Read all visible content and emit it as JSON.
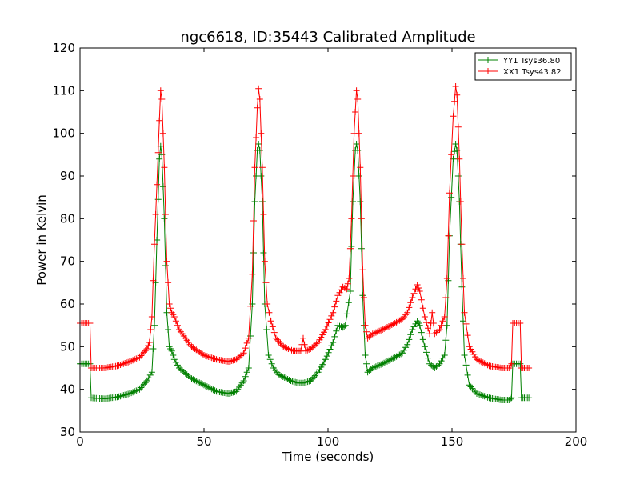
{
  "chart_data": {
    "type": "line",
    "title": "ngc6618, ID:35443 Calibrated Amplitude",
    "xlabel": "Time (seconds)",
    "ylabel": "Power in Kelvin",
    "xlim": [
      0,
      200
    ],
    "ylim": [
      30,
      120
    ],
    "xticks": [
      0,
      50,
      100,
      150,
      200
    ],
    "yticks": [
      30,
      40,
      50,
      60,
      70,
      80,
      90,
      100,
      110,
      120
    ],
    "grid": false,
    "legend_position": "top-right",
    "marker": "+",
    "series": [
      {
        "name": "YY1 Tsys36.80",
        "color": "#008000",
        "points": [
          [
            0,
            46
          ],
          [
            4,
            46
          ],
          [
            4.5,
            38
          ],
          [
            10,
            37.8
          ],
          [
            15,
            38.2
          ],
          [
            20,
            39
          ],
          [
            24,
            40
          ],
          [
            27,
            42
          ],
          [
            29,
            44
          ],
          [
            30,
            55
          ],
          [
            31,
            75
          ],
          [
            32,
            94
          ],
          [
            32.5,
            97
          ],
          [
            33,
            95
          ],
          [
            34,
            80
          ],
          [
            35,
            58
          ],
          [
            36,
            50
          ],
          [
            37,
            49
          ],
          [
            38,
            47
          ],
          [
            40,
            45
          ],
          [
            45,
            42.5
          ],
          [
            50,
            41
          ],
          [
            55,
            39.5
          ],
          [
            60,
            39
          ],
          [
            63,
            39.5
          ],
          [
            66,
            42
          ],
          [
            68,
            45
          ],
          [
            69.5,
            60
          ],
          [
            70.5,
            84
          ],
          [
            71.5,
            96
          ],
          [
            72,
            97.5
          ],
          [
            72.5,
            96
          ],
          [
            73.5,
            84
          ],
          [
            74.5,
            60
          ],
          [
            76,
            48
          ],
          [
            78,
            45
          ],
          [
            80,
            43.5
          ],
          [
            85,
            42
          ],
          [
            88,
            41.5
          ],
          [
            90,
            41.5
          ],
          [
            93,
            42
          ],
          [
            96,
            44
          ],
          [
            99,
            47
          ],
          [
            102,
            51
          ],
          [
            104,
            55
          ],
          [
            106,
            54.5
          ],
          [
            107,
            55
          ],
          [
            109,
            63
          ],
          [
            110,
            84
          ],
          [
            111,
            96
          ],
          [
            111.5,
            97.5
          ],
          [
            112,
            96
          ],
          [
            113,
            84
          ],
          [
            114,
            62
          ],
          [
            115,
            48
          ],
          [
            116,
            44
          ],
          [
            118,
            45
          ],
          [
            122,
            46
          ],
          [
            127,
            47.5
          ],
          [
            130,
            48.5
          ],
          [
            132,
            50.5
          ],
          [
            134,
            54
          ],
          [
            136,
            56
          ],
          [
            137,
            55
          ],
          [
            139,
            50
          ],
          [
            141,
            46
          ],
          [
            143,
            45
          ],
          [
            145,
            46
          ],
          [
            147,
            48
          ],
          [
            148,
            55
          ],
          [
            149,
            76
          ],
          [
            150.5,
            94
          ],
          [
            151.5,
            97.5
          ],
          [
            152,
            96
          ],
          [
            153,
            84
          ],
          [
            154,
            64
          ],
          [
            155,
            48
          ],
          [
            157,
            41
          ],
          [
            160,
            39
          ],
          [
            165,
            38
          ],
          [
            170,
            37.5
          ],
          [
            173,
            37.5
          ],
          [
            174,
            38
          ],
          [
            174.5,
            46
          ],
          [
            176,
            46
          ],
          [
            177.5,
            46
          ],
          [
            178,
            38
          ],
          [
            181,
            38
          ]
        ]
      },
      {
        "name": "XX1 Tsys43.82",
        "color": "#ff0000",
        "points": [
          [
            0,
            55.5
          ],
          [
            4,
            55.5
          ],
          [
            4.5,
            45
          ],
          [
            10,
            45
          ],
          [
            15,
            45.5
          ],
          [
            20,
            46.5
          ],
          [
            24,
            47.5
          ],
          [
            27,
            49.5
          ],
          [
            28,
            51
          ],
          [
            29,
            57
          ],
          [
            30,
            74
          ],
          [
            31,
            88
          ],
          [
            32,
            103
          ],
          [
            32.5,
            110
          ],
          [
            33,
            108
          ],
          [
            34,
            92
          ],
          [
            35,
            70
          ],
          [
            36,
            60
          ],
          [
            37,
            58
          ],
          [
            38,
            57
          ],
          [
            40,
            54
          ],
          [
            45,
            50
          ],
          [
            50,
            48
          ],
          [
            55,
            47
          ],
          [
            60,
            46.5
          ],
          [
            63,
            47
          ],
          [
            66,
            48.5
          ],
          [
            68,
            52
          ],
          [
            69.5,
            67
          ],
          [
            70.5,
            92
          ],
          [
            71.5,
            106
          ],
          [
            72,
            110.5
          ],
          [
            72.5,
            108
          ],
          [
            73.5,
            92
          ],
          [
            74.5,
            70
          ],
          [
            75.5,
            60
          ],
          [
            77,
            56
          ],
          [
            79,
            52
          ],
          [
            82,
            50
          ],
          [
            86,
            49
          ],
          [
            89,
            49
          ],
          [
            90,
            52
          ],
          [
            91,
            49
          ],
          [
            93,
            49.5
          ],
          [
            96,
            51
          ],
          [
            99,
            54
          ],
          [
            102,
            58
          ],
          [
            104,
            62
          ],
          [
            106,
            64
          ],
          [
            107.5,
            63.5
          ],
          [
            108.5,
            66
          ],
          [
            109.5,
            80
          ],
          [
            110.5,
            100
          ],
          [
            111.5,
            110
          ],
          [
            112,
            108
          ],
          [
            113,
            92
          ],
          [
            114,
            68
          ],
          [
            115,
            55
          ],
          [
            116,
            52
          ],
          [
            118,
            53
          ],
          [
            122,
            54
          ],
          [
            127,
            55.5
          ],
          [
            130,
            56.5
          ],
          [
            132,
            58
          ],
          [
            134,
            61.5
          ],
          [
            136,
            64.5
          ],
          [
            137,
            63
          ],
          [
            139,
            57
          ],
          [
            141,
            53
          ],
          [
            142,
            58
          ],
          [
            143,
            53
          ],
          [
            145,
            54
          ],
          [
            147,
            57
          ],
          [
            148,
            66
          ],
          [
            149,
            86
          ],
          [
            150.5,
            104
          ],
          [
            151.5,
            111
          ],
          [
            152,
            109
          ],
          [
            153,
            94
          ],
          [
            154,
            74
          ],
          [
            155,
            58
          ],
          [
            157,
            50
          ],
          [
            160,
            47
          ],
          [
            165,
            45.5
          ],
          [
            170,
            45
          ],
          [
            173,
            45
          ],
          [
            174,
            46
          ],
          [
            174.5,
            55.5
          ],
          [
            176,
            55.5
          ],
          [
            177.5,
            55.5
          ],
          [
            178,
            45
          ],
          [
            181,
            45
          ]
        ]
      }
    ]
  }
}
